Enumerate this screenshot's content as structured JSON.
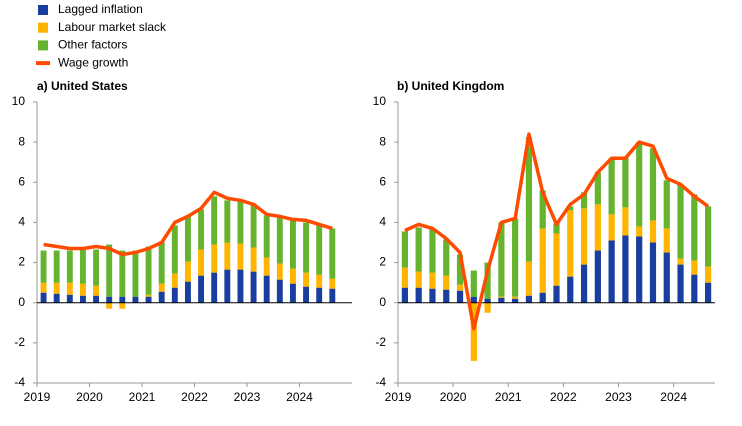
{
  "chart_data": [
    {
      "type": "bar",
      "title": "a) United States",
      "x": [
        2019.125,
        2019.375,
        2019.625,
        2019.875,
        2020.125,
        2020.375,
        2020.625,
        2020.875,
        2021.125,
        2021.375,
        2021.625,
        2021.875,
        2022.125,
        2022.375,
        2022.625,
        2022.875,
        2023.125,
        2023.375,
        2023.625,
        2023.875,
        2024.125,
        2024.375,
        2024.625
      ],
      "xlim": [
        2019,
        2025
      ],
      "xticks": [
        2019,
        2020,
        2021,
        2022,
        2023,
        2024
      ],
      "ylim": [
        -4,
        10
      ],
      "yticks": [
        -4,
        -2,
        0,
        2,
        4,
        6,
        8,
        10
      ],
      "grid": false,
      "series": [
        {
          "name": "Lagged inflation",
          "color": "#1a3da0",
          "values": [
            0.5,
            0.45,
            0.4,
            0.35,
            0.35,
            0.3,
            0.3,
            0.3,
            0.3,
            0.55,
            0.75,
            1.05,
            1.35,
            1.5,
            1.65,
            1.65,
            1.55,
            1.35,
            1.15,
            0.95,
            0.8,
            0.75,
            0.7
          ]
        },
        {
          "name": "Labour market slack",
          "color": "#ffb400",
          "values": [
            0.5,
            0.55,
            0.6,
            0.6,
            0.5,
            -0.3,
            -0.3,
            0,
            0.1,
            0.4,
            0.7,
            1.0,
            1.3,
            1.4,
            1.35,
            1.3,
            1.2,
            0.9,
            0.8,
            0.75,
            0.7,
            0.65,
            0.5
          ]
        },
        {
          "name": "Other factors",
          "color": "#65b32e",
          "values": [
            1.6,
            1.6,
            1.6,
            1.7,
            1.8,
            2.6,
            2.3,
            2.3,
            2.4,
            2.1,
            2.4,
            2.3,
            2.0,
            2.4,
            2.1,
            2.1,
            2.2,
            2.1,
            2.4,
            2.4,
            2.5,
            2.5,
            2.5
          ]
        },
        {
          "name": "Wage growth",
          "type": "line",
          "color": "#ff4b00",
          "values": [
            2.9,
            2.8,
            2.7,
            2.7,
            2.8,
            2.7,
            2.4,
            2.5,
            2.7,
            3.0,
            4.0,
            4.3,
            4.7,
            5.5,
            5.2,
            5.1,
            4.9,
            4.4,
            4.3,
            4.15,
            4.1,
            3.9,
            3.7
          ]
        }
      ]
    },
    {
      "type": "bar",
      "title": "b) United Kingdom",
      "x": [
        2019.125,
        2019.375,
        2019.625,
        2019.875,
        2020.125,
        2020.375,
        2020.625,
        2020.875,
        2021.125,
        2021.375,
        2021.625,
        2021.875,
        2022.125,
        2022.375,
        2022.625,
        2022.875,
        2023.125,
        2023.375,
        2023.625,
        2023.875,
        2024.125,
        2024.375,
        2024.625
      ],
      "xlim": [
        2019,
        2024.75
      ],
      "xticks": [
        2019,
        2020,
        2021,
        2022,
        2023,
        2024
      ],
      "ylim": [
        -4,
        10
      ],
      "yticks": [
        -4,
        -2,
        0,
        2,
        4,
        6,
        8,
        10
      ],
      "grid": false,
      "series": [
        {
          "color": "#1a3da0",
          "values": [
            0.75,
            0.75,
            0.7,
            0.65,
            0.6,
            0.3,
            0.2,
            0.25,
            0.2,
            0.35,
            0.5,
            0.85,
            1.3,
            1.9,
            2.6,
            3.1,
            3.35,
            3.3,
            3.0,
            2.5,
            1.9,
            1.4,
            1.0
          ]
        },
        {
          "color": "#ffb400",
          "values": [
            1.0,
            0.8,
            0.8,
            0.7,
            0.3,
            -2.9,
            -0.5,
            0.05,
            0.1,
            1.7,
            3.2,
            2.6,
            3.3,
            2.8,
            2.3,
            1.3,
            1.4,
            0.5,
            1.1,
            1.2,
            0.3,
            0.7,
            0.8
          ]
        },
        {
          "color": "#65b32e",
          "values": [
            1.8,
            2.2,
            2.2,
            1.8,
            1.5,
            1.3,
            1.8,
            3.7,
            3.9,
            6.2,
            1.9,
            0.5,
            0.2,
            0.8,
            1.6,
            2.8,
            2.5,
            4.2,
            3.6,
            2.4,
            3.7,
            3.3,
            3.0
          ]
        },
        {
          "type": "line",
          "color": "#ff4b00",
          "values": [
            3.6,
            3.9,
            3.7,
            3.2,
            2.5,
            -1.3,
            1.6,
            4.0,
            4.2,
            8.4,
            5.5,
            3.9,
            4.9,
            5.4,
            6.5,
            7.2,
            7.2,
            8.0,
            7.8,
            6.2,
            5.9,
            5.3,
            4.8
          ]
        }
      ]
    }
  ]
}
